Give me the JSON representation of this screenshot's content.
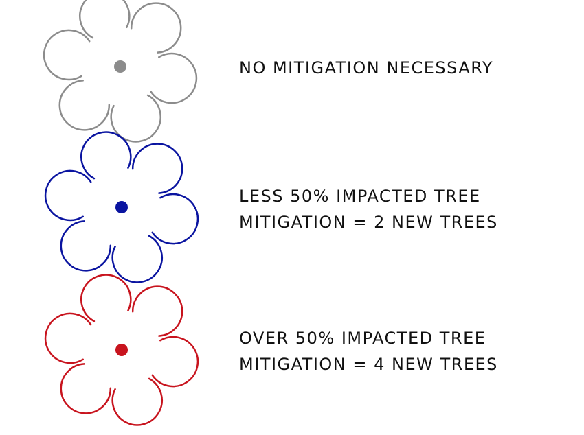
{
  "items": [
    {
      "color": "#8c8c8c",
      "lines": [
        "NO MITIGATION NECESSARY"
      ]
    },
    {
      "color": "#0a14a0",
      "lines": [
        "LESS 50% IMPACTED TREE",
        "MITIGATION = 2 NEW TREES"
      ]
    },
    {
      "color": "#c8141e",
      "lines": [
        "OVER 50% IMPACTED TREE",
        "MITIGATION = 4 NEW TREES"
      ]
    }
  ]
}
